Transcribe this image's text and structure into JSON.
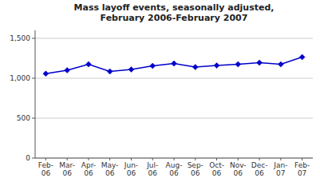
{
  "chart_data": {
    "type": "line",
    "title": "Mass layoff events, seasonally adjusted,\nFebruary 2006-February 2007",
    "categories": [
      "Feb-\n06",
      "Mar-\n06",
      "Apr-\n06",
      "May-\n06",
      "Jun-\n06",
      "Jul-\n06",
      "Aug-\n06",
      "Sep-\n06",
      "Oct-\n06",
      "Nov-\n06",
      "Dec-\n06",
      "Jan-\n07",
      "Feb-\n07"
    ],
    "values": [
      1057,
      1100,
      1175,
      1085,
      1110,
      1155,
      1185,
      1140,
      1160,
      1175,
      1195,
      1175,
      1265
    ],
    "color": "#0000CC",
    "marker": "diamond",
    "ylim": [
      0,
      1600
    ],
    "yticks": [
      0,
      500,
      {
        "value": 1000,
        "label": "1,000"
      },
      {
        "value": 1500,
        "label": "1,500"
      }
    ],
    "grid": true
  }
}
